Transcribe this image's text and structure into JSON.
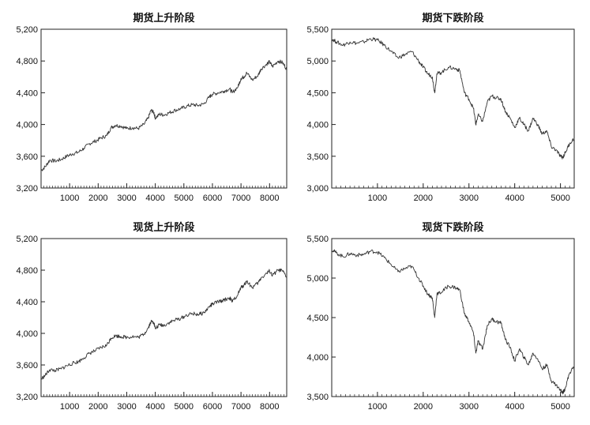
{
  "chart_data": [
    {
      "type": "line",
      "title": "期货上升阶段",
      "xlabel": "",
      "ylabel": "",
      "xlim": [
        1,
        8600
      ],
      "ylim": [
        3200,
        5200
      ],
      "xticks": [
        1000,
        2000,
        3000,
        4000,
        5000,
        6000,
        7000,
        8000
      ],
      "xtick_labels": [
        "1000",
        "2000",
        "3000",
        "4000",
        "5000",
        "6000",
        "7000",
        "8000"
      ],
      "yticks": [
        3200,
        3600,
        4000,
        4400,
        4800,
        5200
      ],
      "ytick_labels": [
        "3,200",
        "3,600",
        "4,000",
        "4,400",
        "4,800",
        "5,200"
      ],
      "grid": false,
      "series": [
        {
          "x": [
            1,
            150,
            300,
            500,
            700,
            900,
            1100,
            1300,
            1500,
            1700,
            1900,
            2100,
            2300,
            2450,
            2600,
            2800,
            3000,
            3200,
            3400,
            3600,
            3750,
            3850,
            3950,
            4000,
            4150,
            4300,
            4500,
            4700,
            4900,
            5100,
            5300,
            5500,
            5700,
            5900,
            6000,
            6200,
            6400,
            6600,
            6700,
            6900,
            7000,
            7100,
            7200,
            7400,
            7600,
            7700,
            7900,
            8000,
            8100,
            8300,
            8450,
            8600
          ],
          "values": [
            3420,
            3470,
            3550,
            3540,
            3560,
            3600,
            3630,
            3650,
            3700,
            3760,
            3790,
            3830,
            3860,
            3960,
            3990,
            3980,
            3950,
            3960,
            3950,
            4000,
            4080,
            4180,
            4150,
            4080,
            4130,
            4120,
            4150,
            4180,
            4200,
            4230,
            4250,
            4240,
            4260,
            4350,
            4380,
            4400,
            4420,
            4450,
            4400,
            4480,
            4580,
            4600,
            4650,
            4560,
            4620,
            4700,
            4760,
            4790,
            4730,
            4800,
            4780,
            4700
          ]
        }
      ]
    },
    {
      "type": "line",
      "title": "期货下跌阶段",
      "xlabel": "",
      "ylabel": "",
      "xlim": [
        1,
        5300
      ],
      "ylim": [
        3000,
        5500
      ],
      "xticks": [
        1000,
        2000,
        3000,
        4000,
        5000
      ],
      "xtick_labels": [
        "1000",
        "2000",
        "3000",
        "4000",
        "5000"
      ],
      "yticks": [
        3000,
        3500,
        4000,
        4500,
        5000,
        5500
      ],
      "ytick_labels": [
        "3,000",
        "3,500",
        "4,000",
        "4,500",
        "5,000",
        "5,500"
      ],
      "grid": false,
      "series": [
        {
          "x": [
            1,
            100,
            250,
            400,
            550,
            700,
            850,
            1000,
            1150,
            1300,
            1450,
            1600,
            1750,
            1900,
            2000,
            2100,
            2200,
            2250,
            2300,
            2400,
            2550,
            2700,
            2800,
            2900,
            3000,
            3100,
            3150,
            3200,
            3300,
            3400,
            3500,
            3600,
            3700,
            3800,
            3900,
            4000,
            4100,
            4200,
            4300,
            4400,
            4500,
            4600,
            4700,
            4800,
            4900,
            5000,
            5050,
            5100,
            5200,
            5300
          ],
          "values": [
            5350,
            5300,
            5250,
            5300,
            5280,
            5300,
            5350,
            5330,
            5250,
            5150,
            5050,
            5100,
            5150,
            5000,
            4900,
            4800,
            4750,
            4500,
            4800,
            4820,
            4900,
            4880,
            4850,
            4500,
            4400,
            4250,
            4000,
            4150,
            4050,
            4350,
            4450,
            4420,
            4400,
            4200,
            4100,
            3950,
            4100,
            4000,
            3900,
            4100,
            4000,
            3850,
            3900,
            3650,
            3600,
            3500,
            3480,
            3550,
            3700,
            3780
          ]
        }
      ]
    },
    {
      "type": "line",
      "title": "现货上升阶段",
      "xlabel": "",
      "ylabel": "",
      "xlim": [
        1,
        8600
      ],
      "ylim": [
        3200,
        5200
      ],
      "xticks": [
        1000,
        2000,
        3000,
        4000,
        5000,
        6000,
        7000,
        8000
      ],
      "xtick_labels": [
        "1000",
        "2000",
        "3000",
        "4000",
        "5000",
        "6000",
        "7000",
        "8000"
      ],
      "yticks": [
        3200,
        3600,
        4000,
        4400,
        4800,
        5200
      ],
      "ytick_labels": [
        "3,200",
        "3,600",
        "4,000",
        "4,400",
        "4,800",
        "5,200"
      ],
      "grid": false,
      "series": [
        {
          "x": [
            1,
            150,
            300,
            500,
            700,
            900,
            1100,
            1300,
            1500,
            1700,
            1900,
            2100,
            2300,
            2450,
            2600,
            2800,
            3000,
            3200,
            3400,
            3600,
            3750,
            3850,
            3950,
            4000,
            4150,
            4300,
            4500,
            4700,
            4900,
            5100,
            5300,
            5500,
            5700,
            5900,
            6000,
            6200,
            6400,
            6600,
            6700,
            6900,
            7000,
            7100,
            7200,
            7400,
            7600,
            7700,
            7900,
            8000,
            8100,
            8300,
            8450,
            8600
          ],
          "values": [
            3420,
            3470,
            3540,
            3530,
            3550,
            3590,
            3620,
            3640,
            3690,
            3750,
            3780,
            3820,
            3850,
            3940,
            3970,
            3960,
            3950,
            3960,
            3950,
            3990,
            4070,
            4150,
            4140,
            4060,
            4110,
            4100,
            4140,
            4170,
            4190,
            4230,
            4250,
            4240,
            4260,
            4340,
            4370,
            4400,
            4420,
            4450,
            4400,
            4500,
            4580,
            4610,
            4660,
            4580,
            4640,
            4700,
            4760,
            4790,
            4730,
            4800,
            4790,
            4710
          ]
        }
      ]
    },
    {
      "type": "line",
      "title": "现货下跌阶段",
      "xlabel": "",
      "ylabel": "",
      "xlim": [
        1,
        5300
      ],
      "ylim": [
        3500,
        5500
      ],
      "xticks": [
        1000,
        2000,
        3000,
        4000,
        5000
      ],
      "xtick_labels": [
        "1000",
        "2000",
        "3000",
        "4000",
        "5000"
      ],
      "yticks": [
        3500,
        4000,
        4500,
        5000,
        5500
      ],
      "ytick_labels": [
        "3,500",
        "4,000",
        "4,500",
        "5,000",
        "5,500"
      ],
      "grid": false,
      "series": [
        {
          "x": [
            1,
            100,
            250,
            400,
            550,
            700,
            850,
            1000,
            1150,
            1300,
            1450,
            1600,
            1750,
            1900,
            2000,
            2100,
            2200,
            2250,
            2300,
            2400,
            2550,
            2700,
            2800,
            2900,
            3000,
            3100,
            3150,
            3200,
            3300,
            3400,
            3500,
            3600,
            3700,
            3800,
            3900,
            4000,
            4100,
            4200,
            4300,
            4400,
            4500,
            4600,
            4700,
            4800,
            4900,
            5000,
            5050,
            5100,
            5200,
            5300
          ],
          "values": [
            5360,
            5320,
            5270,
            5310,
            5290,
            5300,
            5340,
            5330,
            5260,
            5170,
            5080,
            5120,
            5150,
            5000,
            4900,
            4800,
            4750,
            4500,
            4800,
            4820,
            4900,
            4880,
            4850,
            4550,
            4450,
            4300,
            4050,
            4200,
            4100,
            4400,
            4480,
            4450,
            4430,
            4220,
            4120,
            3950,
            4100,
            4000,
            3900,
            4050,
            3980,
            3850,
            3900,
            3700,
            3650,
            3580,
            3550,
            3600,
            3800,
            3880
          ]
        }
      ]
    }
  ]
}
